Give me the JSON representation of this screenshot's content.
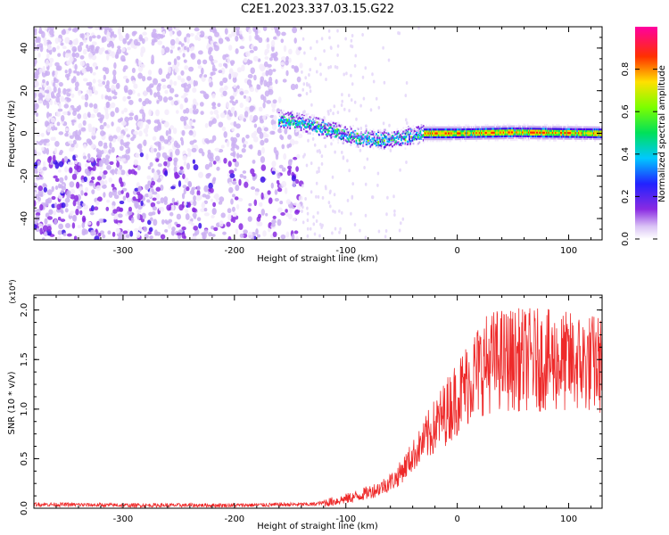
{
  "title": "C2E1.2023.337.03.15.G22",
  "chart_data": [
    {
      "type": "heatmap",
      "xlabel": "Height of straight line (km)",
      "ylabel": "Frequency (Hz)",
      "xlim": [
        -380,
        130
      ],
      "ylim": [
        -50,
        50
      ],
      "xticks": [
        -300,
        -200,
        -100,
        0,
        100
      ],
      "yticks": [
        -40,
        -20,
        0,
        20,
        40
      ],
      "xtick_labels": [
        "-300",
        "-200",
        "-100",
        "0",
        "100"
      ],
      "ytick_labels": [
        "-40",
        "-20",
        "0",
        "20",
        "40"
      ],
      "colorbar": {
        "label": "Normalized spectral amplitude",
        "range": [
          0,
          1
        ],
        "ticks": [
          0.0,
          0.2,
          0.4,
          0.6,
          0.8
        ],
        "tick_labels": [
          "0.0",
          "0.2",
          "0.4",
          "0.6",
          "0.8"
        ],
        "colormap": "rainbow (white-violet-blue-cyan-green-yellow-red-magenta)"
      },
      "ridge": [
        {
          "x": -150,
          "y": 6
        },
        {
          "x": -130,
          "y": 4
        },
        {
          "x": -110,
          "y": 1
        },
        {
          "x": -90,
          "y": -2
        },
        {
          "x": -70,
          "y": -3
        },
        {
          "x": -50,
          "y": -2
        },
        {
          "x": -30,
          "y": 0
        },
        {
          "x": 0,
          "y": 0
        },
        {
          "x": 50,
          "y": 0.5
        },
        {
          "x": 130,
          "y": 0
        }
      ]
    },
    {
      "type": "line",
      "xlabel": "Height of straight line (km)",
      "ylabel": "SNR (10 * v/v)",
      "y_multiplier": "(x10⁴)",
      "xlim": [
        -380,
        130
      ],
      "ylim": [
        0,
        2.15
      ],
      "xticks": [
        -300,
        -200,
        -100,
        0,
        100
      ],
      "yticks": [
        0.0,
        0.5,
        1.0,
        1.5,
        2.0
      ],
      "xtick_labels": [
        "-300",
        "-200",
        "-100",
        "0",
        "100"
      ],
      "ytick_labels": [
        "0.0",
        "0.5",
        "1.0",
        "1.5",
        "2.0"
      ],
      "color": "#ee2a2a",
      "series": [
        {
          "x": [
            -380,
            -300,
            -200,
            -130,
            -110,
            -90,
            -70,
            -55,
            -45,
            -35,
            -25,
            -15,
            -5,
            5,
            15,
            25,
            35,
            50,
            70,
            90,
            110,
            130
          ],
          "y": [
            0.04,
            0.03,
            0.03,
            0.04,
            0.07,
            0.12,
            0.2,
            0.3,
            0.45,
            0.6,
            0.75,
            0.9,
            1.05,
            1.2,
            1.35,
            1.45,
            1.5,
            1.5,
            1.5,
            1.48,
            1.47,
            1.45
          ]
        }
      ]
    }
  ]
}
